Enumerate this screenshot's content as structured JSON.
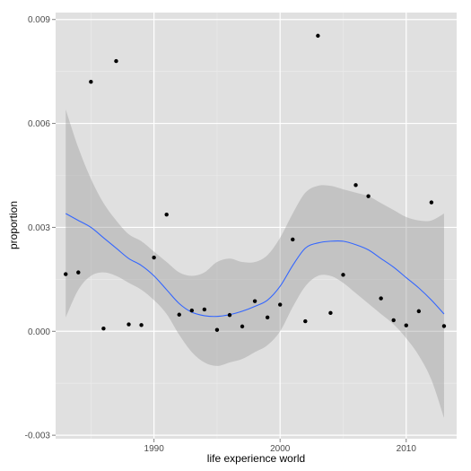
{
  "chart_data": {
    "type": "scatter",
    "xlabel": "life experience world",
    "ylabel": "proportion",
    "xlim": [
      1982.2,
      2014.0
    ],
    "ylim": [
      -0.0031,
      0.0092
    ],
    "x_ticks": [
      1990,
      2000,
      2010
    ],
    "x_tick_labels": [
      "1990",
      "2000",
      "2010"
    ],
    "y_ticks": [
      -0.003,
      0.0,
      0.003,
      0.006,
      0.009
    ],
    "y_tick_labels": [
      "-0.003",
      "0.000",
      "0.003",
      "0.006",
      "0.009"
    ],
    "grid": true,
    "colors": {
      "panel_background": "#e0e0e0",
      "grid_major": "#ffffff",
      "grid_minor": "#ececec",
      "points": "#000000",
      "smooth_line": "#3366ff",
      "ribbon": "#999999"
    },
    "points": [
      {
        "x": 1983,
        "y": 0.00165
      },
      {
        "x": 1984,
        "y": 0.0017
      },
      {
        "x": 1985,
        "y": 0.0072
      },
      {
        "x": 1986,
        "y": 8e-05
      },
      {
        "x": 1987,
        "y": 0.0078
      },
      {
        "x": 1988,
        "y": 0.0002
      },
      {
        "x": 1989,
        "y": 0.00018
      },
      {
        "x": 1990,
        "y": 0.00213
      },
      {
        "x": 1991,
        "y": 0.00337
      },
      {
        "x": 1992,
        "y": 0.00048
      },
      {
        "x": 1993,
        "y": 0.0006
      },
      {
        "x": 1994,
        "y": 0.00063
      },
      {
        "x": 1995,
        "y": 4e-05
      },
      {
        "x": 1996,
        "y": 0.00047
      },
      {
        "x": 1997,
        "y": 0.00014
      },
      {
        "x": 1998,
        "y": 0.00087
      },
      {
        "x": 1999,
        "y": 0.0004
      },
      {
        "x": 2000,
        "y": 0.00077
      },
      {
        "x": 2001,
        "y": 0.00265
      },
      {
        "x": 2002,
        "y": 0.00029
      },
      {
        "x": 2003,
        "y": 0.00853
      },
      {
        "x": 2004,
        "y": 0.00053
      },
      {
        "x": 2005,
        "y": 0.00163
      },
      {
        "x": 2006,
        "y": 0.00422
      },
      {
        "x": 2007,
        "y": 0.0039
      },
      {
        "x": 2008,
        "y": 0.00095
      },
      {
        "x": 2009,
        "y": 0.00032
      },
      {
        "x": 2010,
        "y": 0.00017
      },
      {
        "x": 2011,
        "y": 0.00058
      },
      {
        "x": 2012,
        "y": 0.00372
      },
      {
        "x": 2013,
        "y": 0.00015
      }
    ],
    "smooth": {
      "x": [
        1983,
        1984,
        1985,
        1986,
        1987,
        1988,
        1989,
        1990,
        1991,
        1992,
        1993,
        1994,
        1995,
        1996,
        1997,
        1998,
        1999,
        2000,
        2001,
        2002,
        2003,
        2004,
        2005,
        2006,
        2007,
        2008,
        2009,
        2010,
        2011,
        2012,
        2013
      ],
      "y": [
        0.0034,
        0.0032,
        0.003,
        0.0027,
        0.0024,
        0.0021,
        0.0019,
        0.0016,
        0.0012,
        0.0008,
        0.00055,
        0.00045,
        0.00043,
        0.00048,
        0.00058,
        0.00072,
        0.0009,
        0.0013,
        0.0019,
        0.0024,
        0.00255,
        0.0026,
        0.0026,
        0.0025,
        0.00235,
        0.0021,
        0.00185,
        0.00155,
        0.00125,
        0.0009,
        0.0005
      ],
      "lower": [
        0.0004,
        0.0012,
        0.0016,
        0.0017,
        0.0016,
        0.0014,
        0.0012,
        0.0009,
        0.0005,
        -0.0001,
        -0.0006,
        -0.0009,
        -0.001,
        -0.0009,
        -0.0008,
        -0.0006,
        -0.0004,
        0.0,
        0.0007,
        0.0013,
        0.0016,
        0.0016,
        0.0014,
        0.0011,
        0.0008,
        0.0005,
        0.0002,
        -0.0002,
        -0.0007,
        -0.0014,
        -0.0025
      ],
      "upper": [
        0.0064,
        0.0053,
        0.0044,
        0.0037,
        0.0032,
        0.0028,
        0.0026,
        0.0023,
        0.002,
        0.0017,
        0.0016,
        0.0017,
        0.002,
        0.0021,
        0.002,
        0.002,
        0.0022,
        0.0027,
        0.0034,
        0.004,
        0.0042,
        0.0042,
        0.0041,
        0.004,
        0.0039,
        0.0037,
        0.0035,
        0.0033,
        0.0032,
        0.0032,
        0.0034
      ]
    }
  }
}
